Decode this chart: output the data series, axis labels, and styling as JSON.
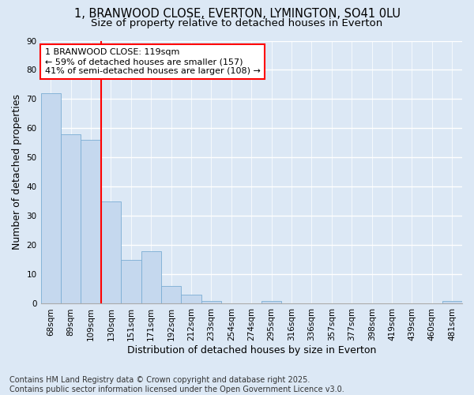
{
  "title": "1, BRANWOOD CLOSE, EVERTON, LYMINGTON, SO41 0LU",
  "subtitle": "Size of property relative to detached houses in Everton",
  "xlabel": "Distribution of detached houses by size in Everton",
  "ylabel": "Number of detached properties",
  "categories": [
    "68sqm",
    "89sqm",
    "109sqm",
    "130sqm",
    "151sqm",
    "171sqm",
    "192sqm",
    "212sqm",
    "233sqm",
    "254sqm",
    "274sqm",
    "295sqm",
    "316sqm",
    "336sqm",
    "357sqm",
    "377sqm",
    "398sqm",
    "419sqm",
    "439sqm",
    "460sqm",
    "481sqm"
  ],
  "values": [
    72,
    58,
    56,
    35,
    15,
    18,
    6,
    3,
    1,
    0,
    0,
    1,
    0,
    0,
    0,
    0,
    0,
    0,
    0,
    0,
    1
  ],
  "bar_color": "#c5d8ee",
  "bar_edge_color": "#7aadd4",
  "vline_x": 2.5,
  "vline_color": "red",
  "annotation_text": "1 BRANWOOD CLOSE: 119sqm\n← 59% of detached houses are smaller (157)\n41% of semi-detached houses are larger (108) →",
  "annotation_box_color": "white",
  "annotation_box_edge": "red",
  "ylim": [
    0,
    90
  ],
  "yticks": [
    0,
    10,
    20,
    30,
    40,
    50,
    60,
    70,
    80,
    90
  ],
  "bg_color": "#dce8f5",
  "grid_color": "white",
  "footer": "Contains HM Land Registry data © Crown copyright and database right 2025.\nContains public sector information licensed under the Open Government Licence v3.0.",
  "title_fontsize": 10.5,
  "subtitle_fontsize": 9.5,
  "axis_label_fontsize": 9,
  "tick_fontsize": 7.5,
  "annotation_fontsize": 8,
  "footer_fontsize": 7
}
